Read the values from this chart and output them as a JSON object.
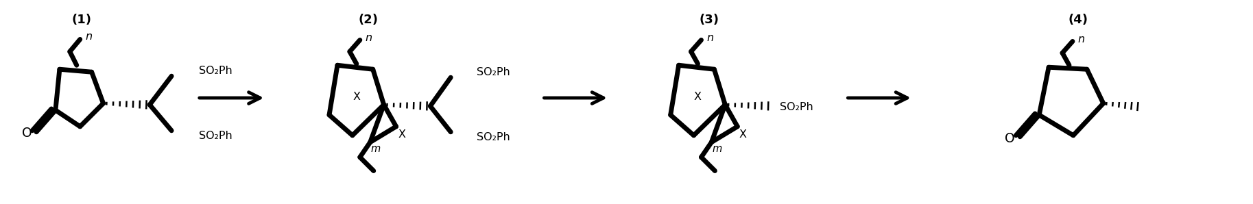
{
  "figsize": [
    18.27,
    2.98
  ],
  "dpi": 100,
  "background_color": "#ffffff",
  "labels": [
    "(1)",
    "(2)",
    "(3)",
    "(4)"
  ],
  "label_fontsize": 13,
  "lw": 2.5,
  "lw_bold": 5.0,
  "fs_text": 11.5
}
